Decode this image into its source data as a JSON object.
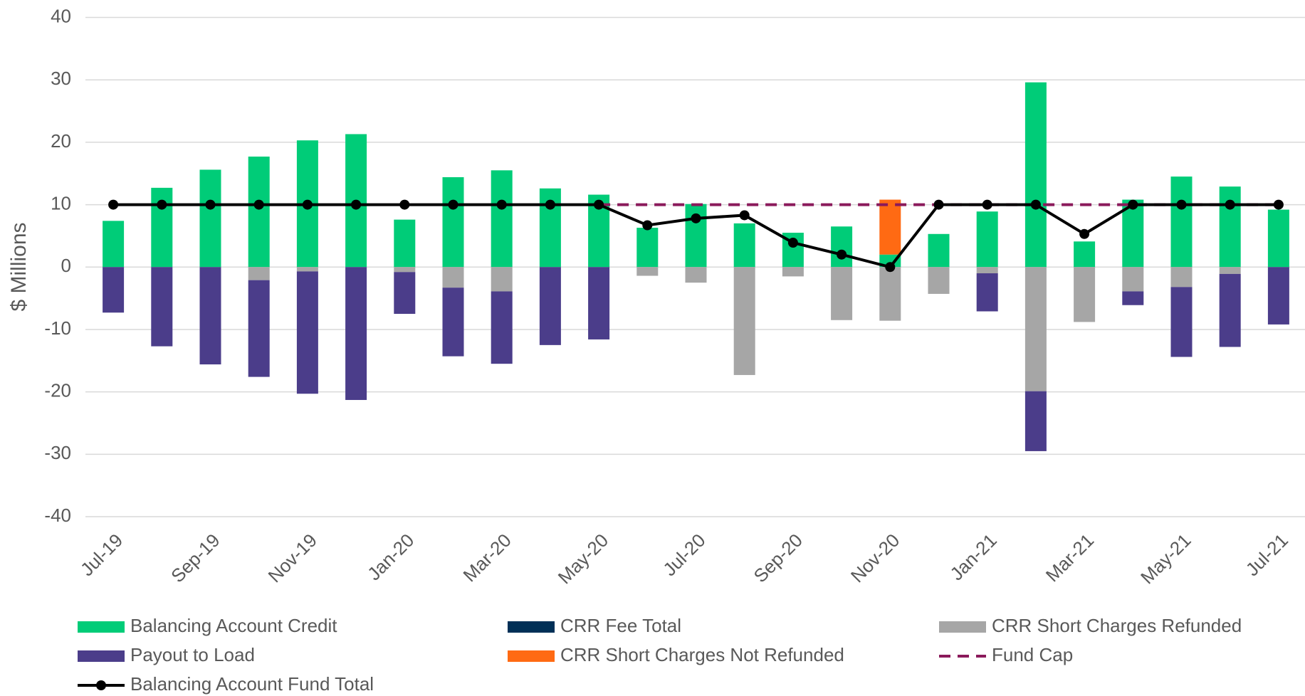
{
  "chart_data": {
    "type": "bar",
    "y_label": "$ Millions",
    "categories": [
      "Jul-19",
      null,
      "Sep-19",
      null,
      "Nov-19",
      null,
      "Jan-20",
      null,
      "Mar-20",
      null,
      "May-20",
      null,
      "Jul-20",
      null,
      "Sep-20",
      null,
      "Nov-20",
      null,
      "Jan-21",
      null,
      "Mar-21",
      null,
      "May-21",
      null,
      "Jul-21"
    ],
    "ylim": [
      -40,
      40
    ],
    "yticks": [
      -40,
      -30,
      -20,
      -10,
      0,
      10,
      20,
      30,
      40
    ],
    "grid": true,
    "series": [
      {
        "name": "Balancing Account Credit",
        "type": "bar",
        "color": "#00cc78",
        "values": [
          7.4,
          12.7,
          15.6,
          17.7,
          20.3,
          21.3,
          7.6,
          14.4,
          15.5,
          12.6,
          11.6,
          6.3,
          10.1,
          7.0,
          5.5,
          6.5,
          2.0,
          5.3,
          8.9,
          29.6,
          4.1,
          10.8,
          14.5,
          12.9,
          9.2
        ]
      },
      {
        "name": "CRR Fee Total",
        "type": "bar",
        "color": "#003057",
        "values": [
          0,
          0,
          0,
          0,
          0,
          0,
          0,
          0,
          0,
          0,
          0,
          0,
          0,
          0,
          0,
          0,
          0,
          0,
          0,
          0,
          0,
          0,
          0,
          0,
          0
        ]
      },
      {
        "name": "CRR Short Charges Refunded",
        "type": "bar",
        "color": "#a6a6a6",
        "values": [
          0,
          0,
          0,
          -2.1,
          -0.7,
          0,
          -0.8,
          -3.3,
          -3.9,
          0,
          0,
          -1.4,
          -2.5,
          -17.3,
          -1.5,
          -8.5,
          -8.6,
          -4.3,
          -1.0,
          -19.9,
          -8.8,
          -3.9,
          -3.2,
          -1.1,
          0
        ]
      },
      {
        "name": "Payout to Load",
        "type": "bar",
        "color": "#4b3d8a",
        "values": [
          -7.3,
          -12.7,
          -15.6,
          -15.5,
          -19.6,
          -21.3,
          -6.7,
          -11.0,
          -11.6,
          -12.5,
          -11.6,
          0,
          0,
          0,
          0,
          0,
          0,
          0,
          -6.1,
          -9.6,
          0,
          -2.2,
          -11.2,
          -11.7,
          -9.2
        ]
      },
      {
        "name": "CRR Short Charges Not Refunded",
        "type": "bar",
        "color": "#ff6a13",
        "values": [
          0,
          0,
          0,
          0,
          0,
          0,
          0,
          0,
          0,
          0,
          0,
          0,
          0,
          0,
          0,
          0,
          8.8,
          0,
          0,
          0,
          0,
          0,
          0,
          0,
          0
        ]
      },
      {
        "name": "Fund Cap",
        "type": "line",
        "dashed": true,
        "color": "#8b1a5b",
        "values": [
          null,
          null,
          null,
          null,
          null,
          null,
          null,
          null,
          null,
          null,
          10,
          10,
          10,
          10,
          10,
          10,
          10,
          10,
          10,
          10,
          10,
          10,
          10,
          10,
          10
        ]
      },
      {
        "name": "Balancing Account Fund Total",
        "type": "line",
        "markers": true,
        "color": "#000000",
        "values": [
          10,
          10,
          10,
          10,
          10,
          10,
          10,
          10,
          10,
          10,
          10,
          6.7,
          7.8,
          8.3,
          3.9,
          2.0,
          0,
          10,
          10,
          10,
          5.3,
          10,
          10,
          10,
          10
        ]
      }
    ]
  }
}
